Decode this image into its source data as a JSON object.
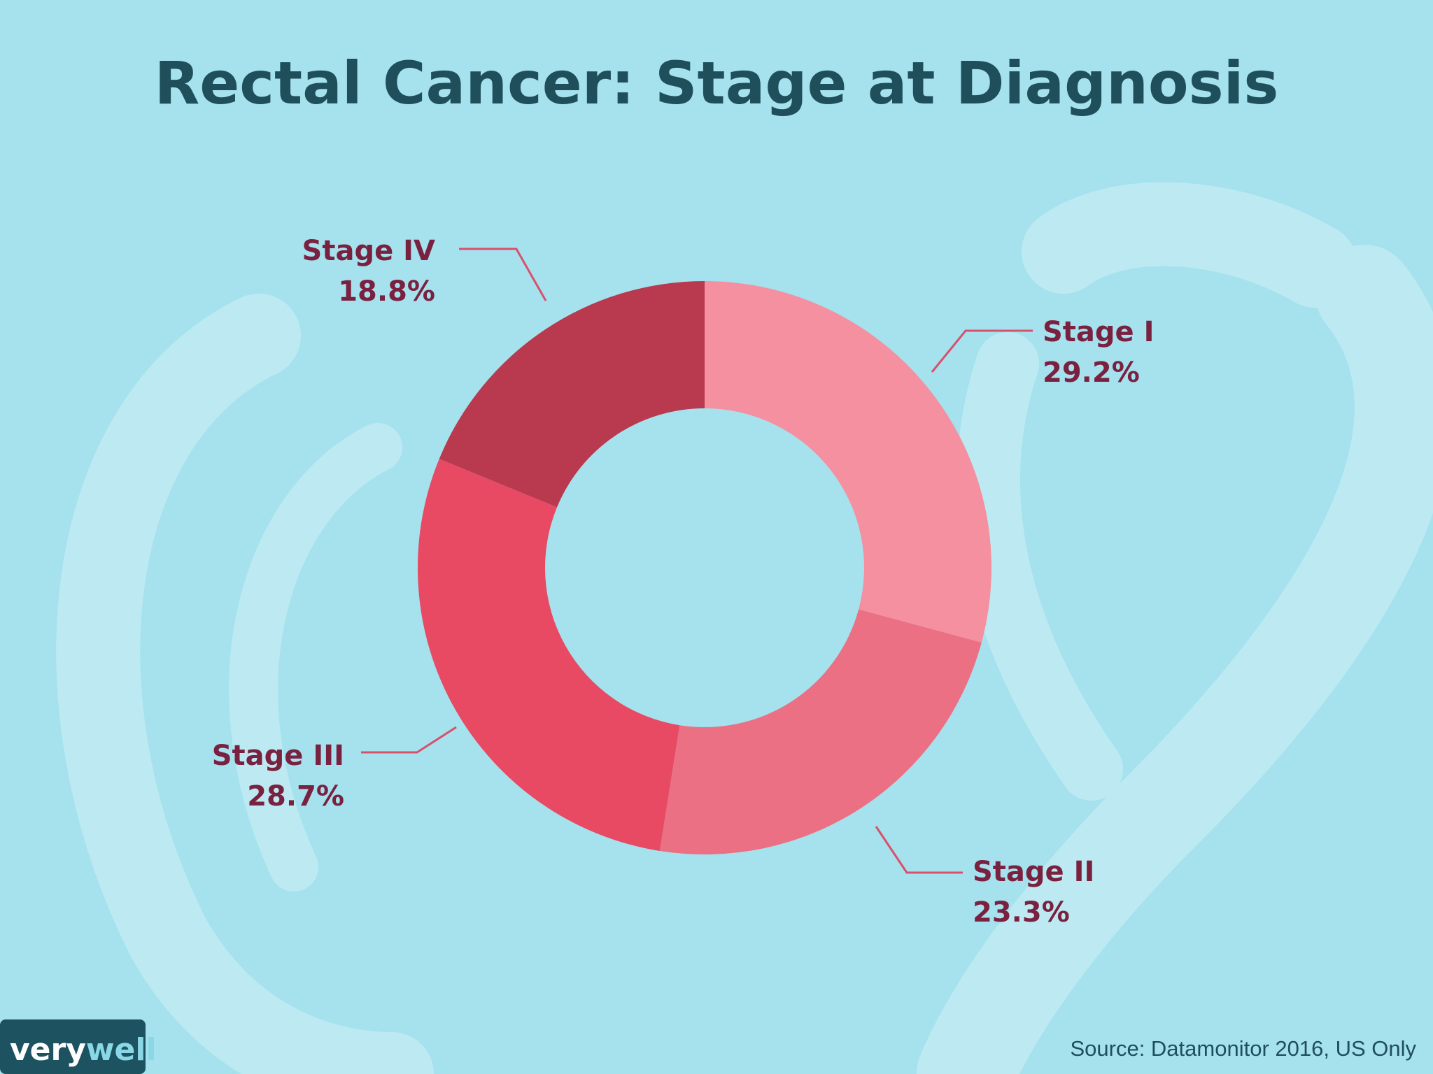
{
  "chart_data": {
    "type": "pie",
    "variant": "donut",
    "title": "Rectal Cancer: Stage at Diagnosis",
    "categories": [
      "Stage I",
      "Stage II",
      "Stage III",
      "Stage IV"
    ],
    "values": [
      29.2,
      23.3,
      28.7,
      18.8
    ],
    "value_labels": [
      "29.2%",
      "23.3%",
      "28.7%",
      "18.8%"
    ],
    "colors": [
      "#f4909f",
      "#ec7083",
      "#e84963",
      "#b93a4e"
    ],
    "legend": "none",
    "grid": false
  },
  "footer": {
    "source": "Source: Datamonitor 2016, US Only"
  },
  "logo": {
    "part1": "very",
    "part2": "well"
  },
  "colors": {
    "background": "#a5e2ee",
    "ribbon": "#bdeaf2",
    "title": "#1f4f5b",
    "label": "#7a2140",
    "leader": "#d9506c",
    "logo_bg": "#1d5360"
  }
}
